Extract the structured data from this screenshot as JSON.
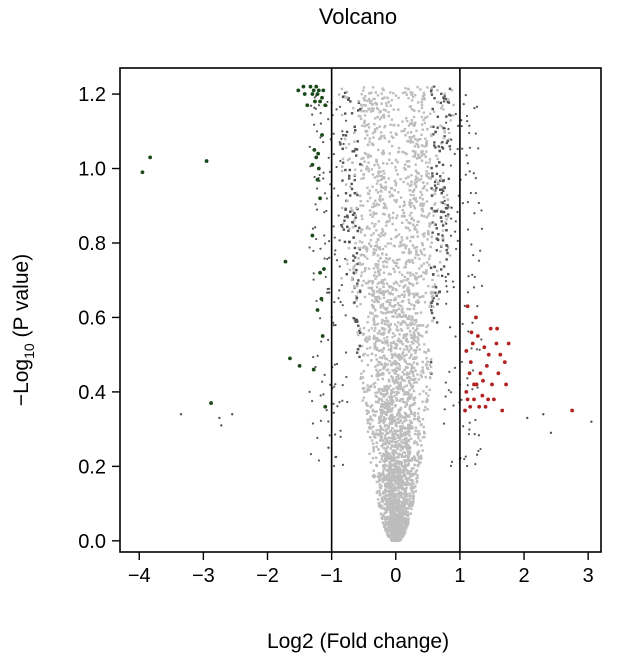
{
  "chart_data": {
    "type": "scatter",
    "title": "Volcano",
    "xlabel": "Log2 (Fold change)",
    "ylabel": {
      "prefix": "−Log",
      "subscript": "10",
      "suffix": " (P value)"
    },
    "xlim": [
      -4.3,
      3.2
    ],
    "ylim": [
      -0.03,
      1.27
    ],
    "xticks": [
      -4,
      -3,
      -2,
      -1,
      0,
      1,
      2,
      3
    ],
    "yticks": [
      0.0,
      0.2,
      0.4,
      0.6,
      0.8,
      1.0,
      1.2
    ],
    "xtick_labels": [
      "−4",
      "−3",
      "−2",
      "−1",
      "0",
      "1",
      "2",
      "3"
    ],
    "ytick_labels": [
      "0.0",
      "0.2",
      "0.4",
      "0.6",
      "0.8",
      "1.0",
      "1.2"
    ],
    "thresholds": {
      "x": [
        -1,
        1
      ]
    },
    "grid": false,
    "colors": {
      "down": "#1a4a1a",
      "up": "#b22222",
      "not_significant": "#bdbdbd",
      "near_threshold": "#555555",
      "axis": "#000000"
    },
    "series": [
      {
        "key": "down",
        "points": [
          [
            -3.95,
            0.99
          ],
          [
            -3.83,
            1.03
          ],
          [
            -2.95,
            1.02
          ],
          [
            -2.88,
            0.37
          ],
          [
            -1.72,
            0.75
          ],
          [
            -1.65,
            0.49
          ],
          [
            -1.52,
            1.21
          ],
          [
            -1.44,
            1.22
          ],
          [
            -1.42,
            1.2
          ],
          [
            -1.38,
            1.17
          ],
          [
            -1.33,
            1.22
          ],
          [
            -1.3,
            1.2
          ],
          [
            -1.28,
            1.21
          ],
          [
            -1.26,
            1.18
          ],
          [
            -1.24,
            1.22
          ],
          [
            -1.22,
            1.2
          ],
          [
            -1.2,
            1.21
          ],
          [
            -1.18,
            1.18
          ],
          [
            -1.15,
            1.19
          ],
          [
            -1.13,
            1.21
          ],
          [
            -1.1,
            1.17
          ],
          [
            -1.27,
            1.05
          ],
          [
            -1.24,
            1.03
          ],
          [
            -1.21,
            1.04
          ],
          [
            -1.3,
            1.01
          ],
          [
            -1.2,
            1.0
          ],
          [
            -1.15,
            1.09
          ],
          [
            -1.22,
            0.97
          ],
          [
            -1.18,
            0.92
          ],
          [
            -1.16,
            0.65
          ],
          [
            -1.3,
            0.82
          ],
          [
            -1.12,
            0.73
          ],
          [
            -1.18,
            0.72
          ],
          [
            -1.5,
            0.47
          ],
          [
            -1.28,
            0.46
          ],
          [
            -1.1,
            0.36
          ],
          [
            -1.14,
            0.55
          ],
          [
            -1.22,
            0.62
          ]
        ]
      },
      {
        "key": "up",
        "points": [
          [
            1.08,
            0.35
          ],
          [
            1.1,
            0.4
          ],
          [
            1.12,
            0.38
          ],
          [
            1.15,
            0.45
          ],
          [
            1.1,
            0.51
          ],
          [
            1.18,
            0.56
          ],
          [
            1.2,
            0.53
          ],
          [
            1.12,
            0.63
          ],
          [
            1.17,
            0.48
          ],
          [
            1.22,
            0.42
          ],
          [
            1.25,
            0.6
          ],
          [
            1.28,
            0.55
          ],
          [
            1.32,
            0.45
          ],
          [
            1.35,
            0.39
          ],
          [
            1.38,
            0.52
          ],
          [
            1.4,
            0.36
          ],
          [
            1.42,
            0.47
          ],
          [
            1.45,
            0.5
          ],
          [
            1.48,
            0.57
          ],
          [
            1.5,
            0.42
          ],
          [
            1.53,
            0.38
          ],
          [
            1.57,
            0.53
          ],
          [
            1.6,
            0.45
          ],
          [
            1.63,
            0.5
          ],
          [
            1.66,
            0.35
          ],
          [
            1.7,
            0.48
          ],
          [
            1.72,
            0.42
          ],
          [
            1.76,
            0.53
          ],
          [
            1.3,
            0.36
          ],
          [
            1.22,
            0.38
          ],
          [
            1.16,
            0.36
          ],
          [
            1.58,
            0.57
          ],
          [
            1.26,
            0.42
          ],
          [
            1.36,
            0.43
          ],
          [
            1.44,
            0.38
          ],
          [
            2.75,
            0.35
          ]
        ]
      }
    ]
  }
}
